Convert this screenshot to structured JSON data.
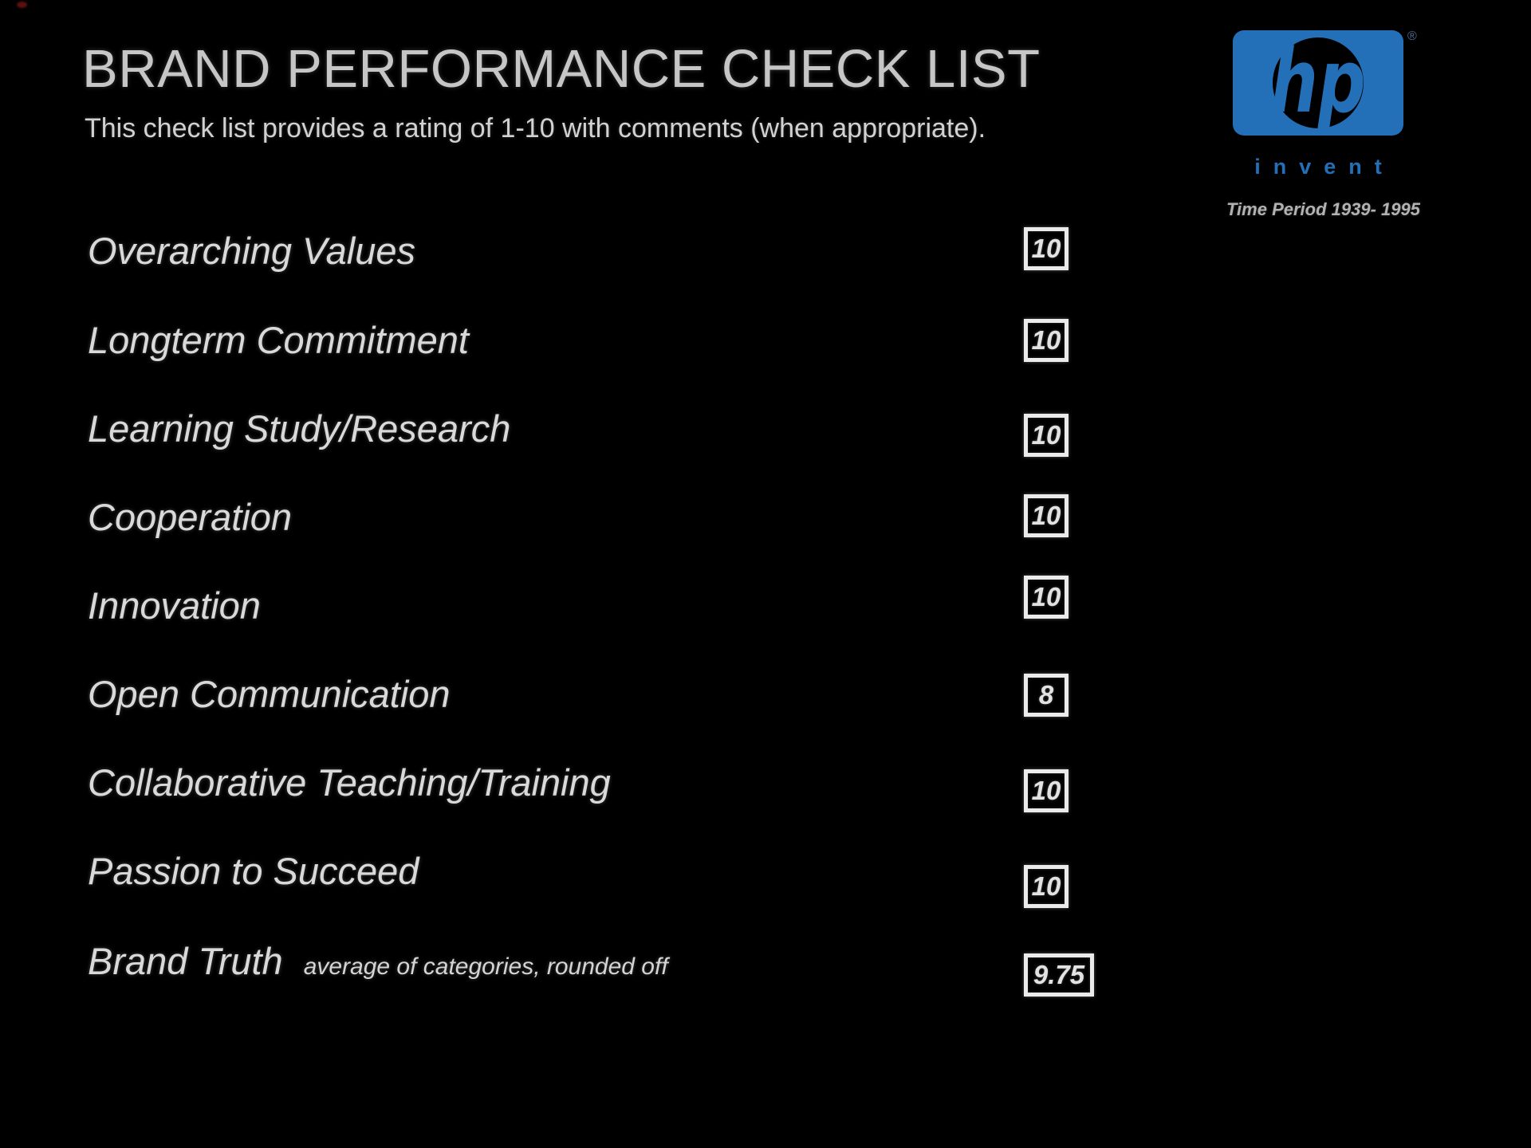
{
  "slide": {
    "title": "BRAND PERFORMANCE CHECK LIST",
    "subtitle": "This check list provides a rating of 1-10 with comments (when appropriate).",
    "time_period": "Time Period 1939- 1995"
  },
  "logo": {
    "brand": "hp",
    "tagline": "invent",
    "registered_mark": "®"
  },
  "checklist": {
    "rating_scale": "1-10",
    "items": [
      {
        "label": "Overarching Values",
        "rating": "10"
      },
      {
        "label": "Longterm Commitment",
        "rating": "10"
      },
      {
        "label": "Learning Study/Research",
        "rating": "10"
      },
      {
        "label": "Cooperation",
        "rating": "10"
      },
      {
        "label": "Innovation",
        "rating": "10"
      },
      {
        "label": "Open Communication",
        "rating": "8"
      },
      {
        "label": "Collaborative Teaching/Training",
        "rating": "10"
      },
      {
        "label": "Passion to Succeed",
        "rating": "10"
      },
      {
        "label": "Brand Truth",
        "note": "average of categories, rounded off",
        "rating": "9.75"
      }
    ]
  },
  "colors": {
    "background": "#000000",
    "hp_blue": "#2470b8",
    "title_text": "#c6c6c6",
    "label_text": "#d9d9d9",
    "box_border": "#ebebeb",
    "time_period_text": "#b2b2b2",
    "registered_mark_color": "#4f6f92"
  }
}
